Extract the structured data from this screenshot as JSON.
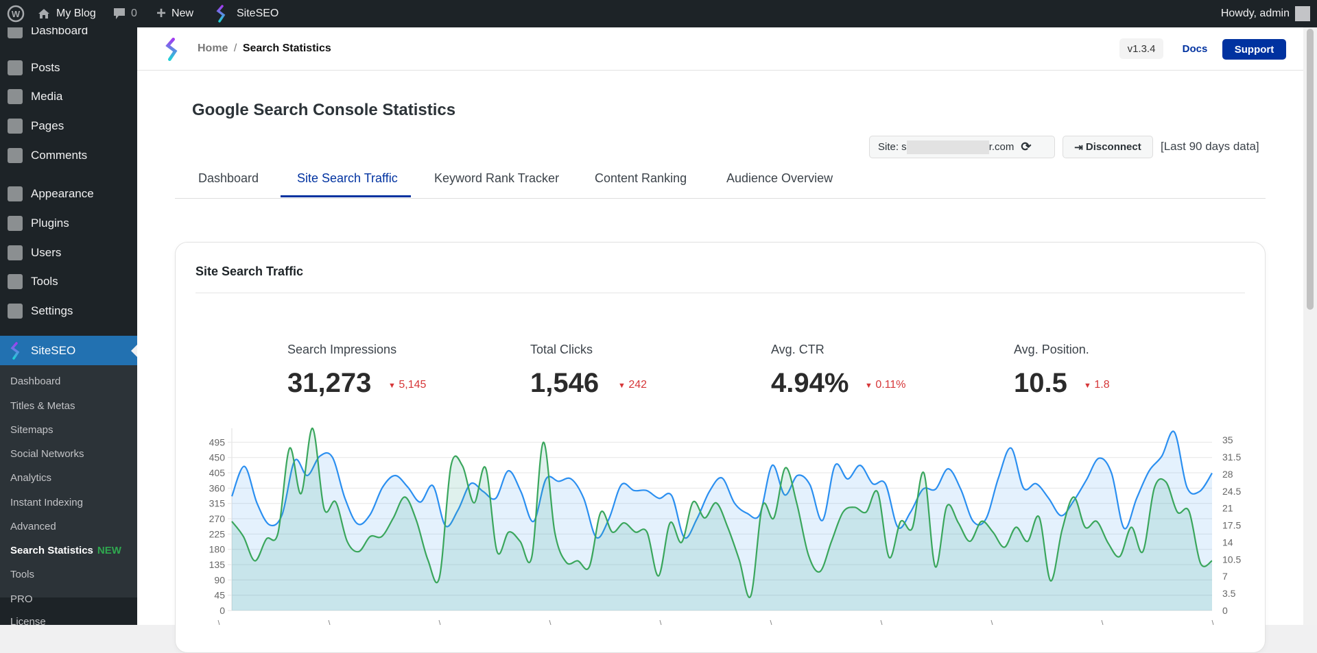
{
  "adminbar": {
    "site": "My Blog",
    "comments": "0",
    "new": "New",
    "plugin": "SiteSEO",
    "greeting": "Howdy, admin"
  },
  "sidebar": {
    "items": [
      {
        "label": "Dashboard"
      },
      {
        "label": "Posts"
      },
      {
        "label": "Media"
      },
      {
        "label": "Pages"
      },
      {
        "label": "Comments"
      },
      {
        "label": "Appearance"
      },
      {
        "label": "Plugins"
      },
      {
        "label": "Users"
      },
      {
        "label": "Tools"
      },
      {
        "label": "Settings"
      }
    ],
    "active": "SiteSEO",
    "submenu": [
      {
        "label": "Dashboard"
      },
      {
        "label": "Titles & Metas"
      },
      {
        "label": "Sitemaps"
      },
      {
        "label": "Social Networks"
      },
      {
        "label": "Analytics"
      },
      {
        "label": "Instant Indexing"
      },
      {
        "label": "Advanced"
      },
      {
        "label": "Search Statistics",
        "badge": "NEW"
      },
      {
        "label": "Tools"
      },
      {
        "label": "PRO"
      },
      {
        "label": "License"
      }
    ]
  },
  "header": {
    "breadcrumb_home": "Home",
    "breadcrumb_sep": "/",
    "breadcrumb_current": "Search Statistics",
    "version": "v1.3.4",
    "docs": "Docs",
    "support": "Support"
  },
  "page": {
    "title": "Google Search Console Statistics",
    "site_prefix": "Site: s",
    "site_suffix": "r.com",
    "disconnect": "Disconnect",
    "range": "[Last 90 days data]"
  },
  "tabs": [
    {
      "label": "Dashboard"
    },
    {
      "label": "Site Search Traffic",
      "active": true
    },
    {
      "label": "Keyword Rank Tracker"
    },
    {
      "label": "Content Ranking"
    },
    {
      "label": "Audience Overview"
    }
  ],
  "card": {
    "title": "Site Search Traffic",
    "stats": [
      {
        "label": "Search Impressions",
        "value": "31,273",
        "delta": "5,145"
      },
      {
        "label": "Total Clicks",
        "value": "1,546",
        "delta": "242"
      },
      {
        "label": "Avg. CTR",
        "value": "4.94%",
        "delta": "0.11%"
      },
      {
        "label": "Avg. Position.",
        "value": "10.5",
        "delta": "1.8"
      }
    ]
  },
  "colors": {
    "accent": "#0032a0",
    "impressions": "#2b8ff0",
    "clicks": "#3aa65c",
    "down": "#d63638"
  },
  "chart_data": {
    "type": "area",
    "grid": true,
    "left_axis": {
      "ticks": [
        0,
        45,
        90,
        135,
        180,
        225,
        270,
        315,
        360,
        405,
        450,
        495
      ],
      "range": [
        0,
        520
      ]
    },
    "right_axis": {
      "ticks": [
        "0",
        "3.5",
        "7",
        "10.5",
        "14",
        "17.5",
        "21",
        "24.5",
        "28",
        "31.5",
        "35"
      ],
      "range": [
        0,
        36.3
      ]
    },
    "series": [
      {
        "axis": "left",
        "color": "#2b8ff0",
        "values": [
          336,
          424,
          316,
          252,
          282,
          441,
          397,
          454,
          451,
          330,
          255,
          282,
          363,
          397,
          363,
          319,
          367,
          249,
          296,
          373,
          350,
          330,
          411,
          350,
          262,
          387,
          380,
          387,
          330,
          215,
          269,
          370,
          353,
          353,
          330,
          338,
          215,
          269,
          350,
          390,
          316,
          286,
          282,
          427,
          340,
          397,
          370,
          265,
          427,
          387,
          427,
          373,
          373,
          245,
          289,
          357,
          357,
          417,
          357,
          262,
          269,
          390,
          478,
          360,
          373,
          330,
          279,
          323,
          384,
          448,
          404,
          242,
          330,
          411,
          454,
          525,
          363,
          350,
          404
        ]
      },
      {
        "axis": "right",
        "color": "#3aa65c",
        "values": [
          18.3,
          15.2,
          10.2,
          14.7,
          15.9,
          33.3,
          24.0,
          37.4,
          20.9,
          22.3,
          14.2,
          12.1,
          15.2,
          15.2,
          19.0,
          23.3,
          18.5,
          10.4,
          6.8,
          29.7,
          29.7,
          22.1,
          29.3,
          12.1,
          16.1,
          14.2,
          10.9,
          34.5,
          16.1,
          9.9,
          10.2,
          9.0,
          20.2,
          16.1,
          18.0,
          16.1,
          16.1,
          7.1,
          18.0,
          14.0,
          22.3,
          19.0,
          22.1,
          17.1,
          10.4,
          3.0,
          21.4,
          19.0,
          29.3,
          21.9,
          11.4,
          8.0,
          14.2,
          20.2,
          21.2,
          20.2,
          24.3,
          10.9,
          18.3,
          16.9,
          28.3,
          9.0,
          21.4,
          18.0,
          14.2,
          18.3,
          16.1,
          13.0,
          17.1,
          14.2,
          19.2,
          6.1,
          16.6,
          23.3,
          17.1,
          18.3,
          13.8,
          11.1,
          17.1,
          12.1,
          25.2,
          26.4,
          20.2,
          20.4,
          9.7,
          10.2
        ]
      }
    ]
  }
}
